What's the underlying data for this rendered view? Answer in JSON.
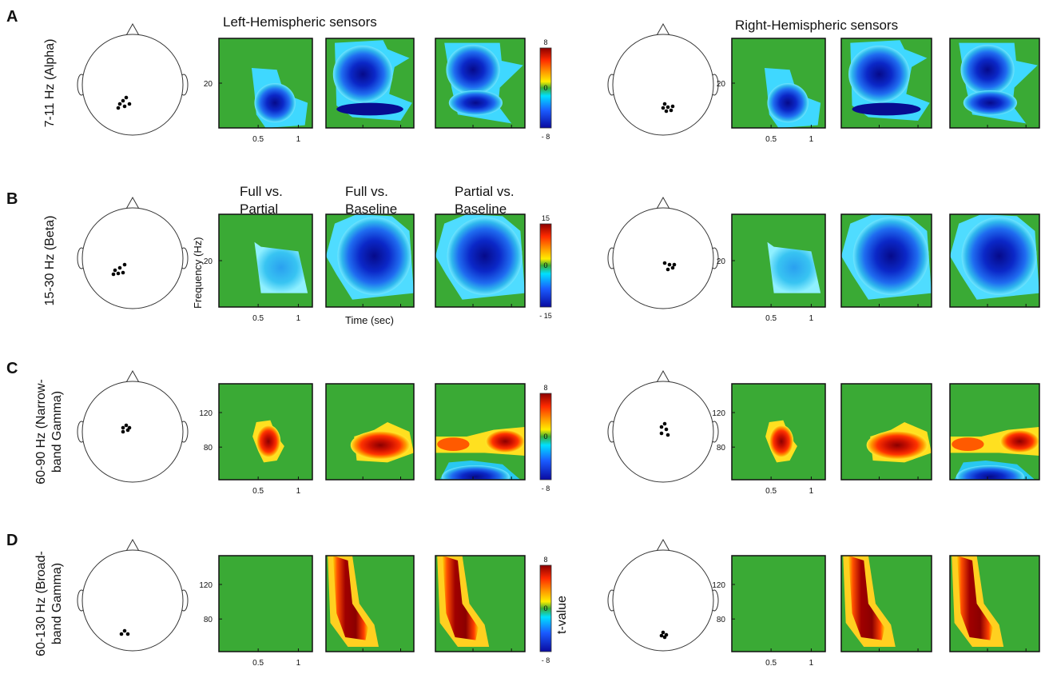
{
  "header": {
    "left_title": "Left-Hemispheric sensors",
    "right_title": "Right-Hemispheric sensors"
  },
  "column_headers": {
    "col1": [
      "Full vs.",
      "Partial"
    ],
    "col2": [
      "Full vs.",
      "Baseline"
    ],
    "col3": [
      "Partial vs.",
      "Baseline"
    ]
  },
  "axis_labels": {
    "y": "Frequency (Hz)",
    "x": "Time (sec)",
    "colorbar": "t-value"
  },
  "x_ticks": [
    "0.5",
    "1"
  ],
  "colors": {
    "bg": "#3aaa35",
    "plot_border": "#111111"
  },
  "rows": [
    {
      "panel": "A",
      "label_lines": [
        "7-11 Hz (Alpha)"
      ],
      "y_ticks": [
        "20"
      ],
      "cbar": {
        "top": "8",
        "mid": "0",
        "bottom": "- 8"
      }
    },
    {
      "panel": "B",
      "label_lines": [
        "15-30 Hz (Beta)"
      ],
      "y_ticks": [
        "20"
      ],
      "cbar": {
        "top": "15",
        "mid": "0",
        "bottom": "- 15"
      }
    },
    {
      "panel": "C",
      "label_lines": [
        "60-90 Hz (Narrow-",
        "band Gamma)"
      ],
      "y_ticks": [
        "120",
        "80"
      ],
      "cbar": {
        "top": "8",
        "mid": "0",
        "bottom": "- 8"
      }
    },
    {
      "panel": "D",
      "label_lines": [
        "60-130 Hz (Broad-",
        "band Gamma)"
      ],
      "y_ticks": [
        "120",
        "80"
      ],
      "cbar": {
        "top": "8",
        "mid": "0",
        "bottom": "- 8"
      }
    }
  ]
}
